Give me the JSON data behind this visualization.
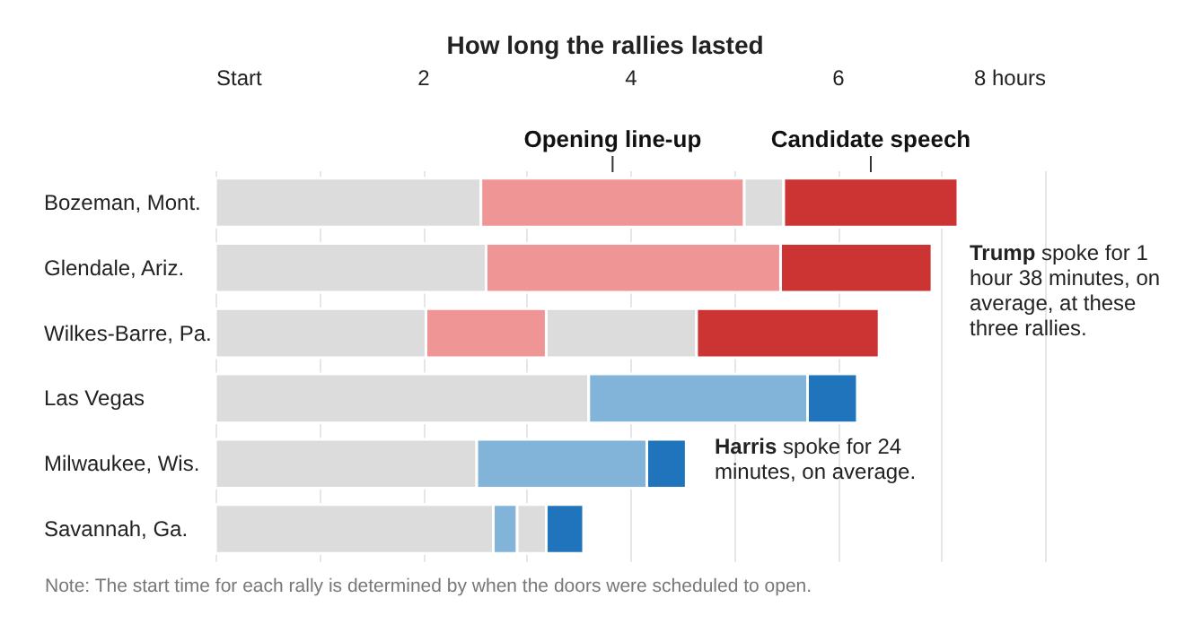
{
  "chart_data": {
    "type": "bar",
    "orientation": "horizontal",
    "stacked": true,
    "title": "How long the rallies lasted",
    "categories": [
      "Bozeman, Mont.",
      "Glendale, Ariz.",
      "Wilkes-Barre, Pa.",
      "Las Vegas",
      "Milwaukee, Wis.",
      "Savannah, Ga."
    ],
    "series": [
      {
        "colors": [
          "#dcdcdc",
          "#dcdcdc",
          "#dcdcdc",
          "#dcdcdc",
          "#dcdcdc",
          "#dcdcdc"
        ],
        "values": [
          2.56,
          2.61,
          2.03,
          3.6,
          2.52,
          2.68
        ]
      },
      {
        "name": "Opening line-up",
        "colors": [
          "#f09595",
          "#f09595",
          "#f09595",
          "#82b3d8",
          "#82b3d8",
          "#82b3d8"
        ],
        "values": [
          2.54,
          2.84,
          1.16,
          2.11,
          1.64,
          0.23
        ]
      },
      {
        "colors": [
          "#dcdcdc",
          "#dcdcdc",
          "#dcdcdc",
          "#dcdcdc",
          "#dcdcdc",
          "#dcdcdc"
        ],
        "values": [
          0.38,
          0,
          1.45,
          0,
          0,
          0.28
        ]
      },
      {
        "name": "Candidate speech",
        "colors": [
          "#cc3333",
          "#cc3333",
          "#cc3333",
          "#1f74bb",
          "#1f74bb",
          "#1f74bb"
        ],
        "values": [
          1.68,
          1.46,
          1.76,
          0.48,
          0.38,
          0.36
        ]
      }
    ],
    "xlim": [
      0,
      8
    ],
    "xticks": [
      {
        "value": 0,
        "label": "Start"
      },
      {
        "value": 1,
        "label": null
      },
      2,
      {
        "value": 3,
        "label": null
      },
      4,
      {
        "value": 5,
        "label": null
      },
      6,
      {
        "value": 7,
        "label": null
      },
      {
        "value": 8,
        "label": "8 hours"
      }
    ],
    "grid": "x",
    "annotations": [
      "Trump spoke for 1 hour 38 minutes, on average, at these three rallies.",
      "Harris spoke for 24 minutes, on average.",
      "Note: The start time for each rally is determined by when the doors were scheduled to open."
    ]
  }
}
